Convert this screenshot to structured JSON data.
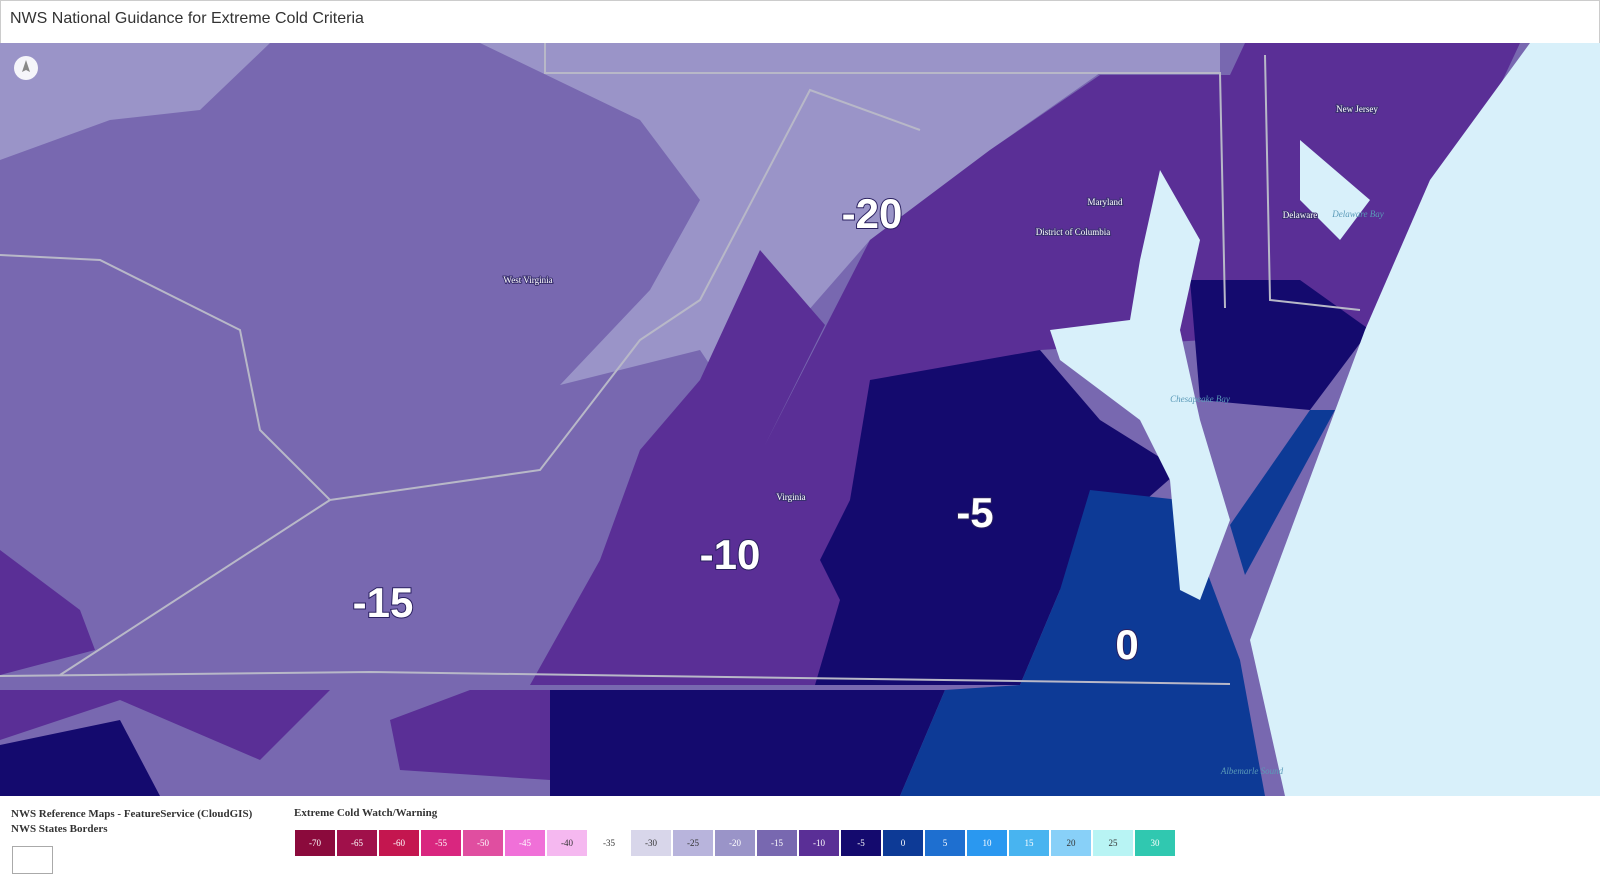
{
  "header": {
    "title": "NWS National Guidance for Extreme Cold Criteria"
  },
  "map": {
    "zone_labels": [
      "-20",
      "-15",
      "-10",
      "-5",
      "0"
    ],
    "place_labels": [
      "West Virginia",
      "Maryland",
      "District of Columbia",
      "Virginia",
      "New Jersey",
      "Delaware"
    ],
    "water_labels": [
      "Delaware Bay",
      "Chesapeake Bay",
      "Albemarle Sound"
    ]
  },
  "legend": {
    "layers": [
      "NWS Reference Maps - FeatureService (CloudGIS)",
      "NWS States Borders"
    ],
    "title": "Extreme Cold Watch/Warning",
    "items": [
      {
        "label": "-70",
        "color": "#8b0a3c"
      },
      {
        "label": "-65",
        "color": "#a0104a"
      },
      {
        "label": "-60",
        "color": "#c4164f"
      },
      {
        "label": "-55",
        "color": "#d9267f"
      },
      {
        "label": "-50",
        "color": "#e04ea0"
      },
      {
        "label": "-45",
        "color": "#f070d8"
      },
      {
        "label": "-40",
        "color": "#f5b8f0"
      },
      {
        "label": "-35",
        "color": "#ffffff"
      },
      {
        "label": "-30",
        "color": "#d8d6ea"
      },
      {
        "label": "-25",
        "color": "#b8b4dc"
      },
      {
        "label": "-20",
        "color": "#9a94c8"
      },
      {
        "label": "-15",
        "color": "#7868b0"
      },
      {
        "label": "-10",
        "color": "#5a2f96"
      },
      {
        "label": "-5",
        "color": "#140a6e"
      },
      {
        "label": "0",
        "color": "#0d3a96"
      },
      {
        "label": "5",
        "color": "#1e6fd0"
      },
      {
        "label": "10",
        "color": "#2a98f0"
      },
      {
        "label": "15",
        "color": "#48b4f0"
      },
      {
        "label": "20",
        "color": "#88d0f8"
      },
      {
        "label": "25",
        "color": "#b8f4f4"
      },
      {
        "label": "30",
        "color": "#30c8b0"
      }
    ]
  }
}
